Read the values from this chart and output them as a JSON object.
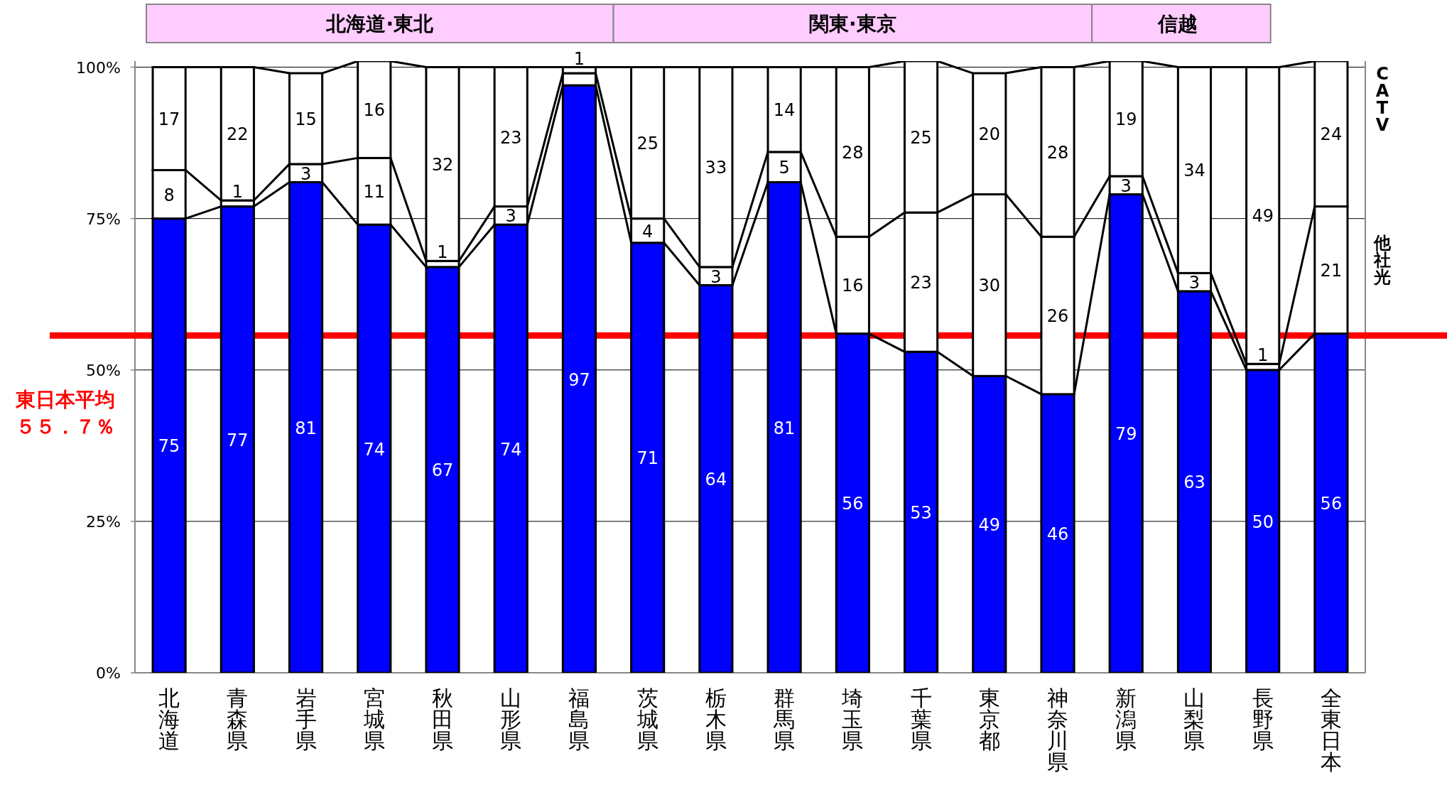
{
  "chart_data": {
    "type": "bar",
    "stacked": true,
    "categories": [
      "北海道",
      "青森県",
      "岩手県",
      "宮城県",
      "秋田県",
      "山形県",
      "福島県",
      "茨城県",
      "栃木県",
      "群馬県",
      "埼玉県",
      "千葉県",
      "東京都",
      "神奈川県",
      "新潟県",
      "山梨県",
      "長野県",
      "全東日本"
    ],
    "series": [
      {
        "color": "#0000ff",
        "values": [
          75,
          77,
          81,
          74,
          67,
          74,
          97,
          71,
          64,
          81,
          56,
          53,
          49,
          46,
          79,
          63,
          50,
          56
        ],
        "value_labels": [
          "75",
          "77",
          "81",
          "74",
          "67",
          "74",
          "97",
          "71",
          "64",
          "81",
          "56",
          "53",
          "49",
          "46",
          "79",
          "63",
          "50",
          "56"
        ]
      },
      {
        "name": "他社光",
        "color": "#ffffff",
        "values": [
          8,
          1,
          3,
          11,
          1,
          3,
          2,
          4,
          3,
          5,
          16,
          23,
          30,
          26,
          3,
          3,
          1,
          21
        ],
        "value_labels": [
          "8",
          "1",
          "3",
          "11",
          "1",
          "3",
          null,
          "4",
          "3",
          "5",
          "16",
          "23",
          "30",
          "26",
          "3",
          "3",
          "1",
          "21"
        ]
      },
      {
        "name": "CATV",
        "color": "#ffffff",
        "values": [
          17,
          22,
          15,
          16,
          32,
          23,
          1,
          25,
          33,
          14,
          28,
          25,
          20,
          28,
          19,
          34,
          49,
          24
        ],
        "value_labels": [
          "17",
          "22",
          "15",
          "16",
          "32",
          "23",
          "1",
          "25",
          "33",
          "14",
          "28",
          "25",
          "20",
          "28",
          "19",
          "34",
          "49",
          "24"
        ]
      }
    ],
    "ylim": [
      0,
      101
    ],
    "yticks": [
      {
        "value": 0,
        "label": "0%"
      },
      {
        "value": 25,
        "label": "25%"
      },
      {
        "value": 50,
        "label": "50%"
      },
      {
        "value": 75,
        "label": "75%"
      },
      {
        "value": 100,
        "label": "100%"
      }
    ],
    "grid": "y",
    "legend": "right",
    "ref_lines": [
      {
        "axis": "y",
        "value": 55.7,
        "label": "東日本平均５５．７％",
        "color": "#ff0000"
      }
    ],
    "annotations": [
      "北海道·東北",
      "関東·東京",
      "信越"
    ]
  }
}
